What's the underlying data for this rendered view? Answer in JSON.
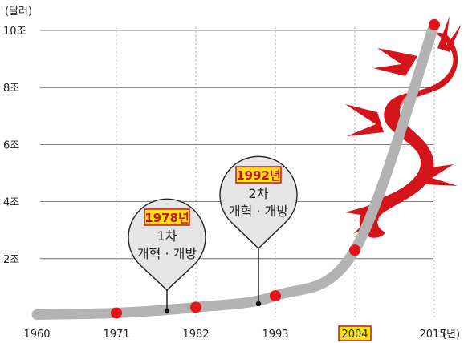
{
  "chart_data": {
    "type": "line",
    "title": "",
    "y_unit": "(달러)",
    "x_unit": "(년)",
    "x_ticks": [
      "1960",
      "1971",
      "1982",
      "1993",
      "2004",
      "2015"
    ],
    "highlighted_x_tick": "2004",
    "y_ticks": [
      "2조",
      "4조",
      "6조",
      "8조",
      "10조"
    ],
    "ylim": [
      0,
      10
    ],
    "xlim": [
      1960,
      2015
    ],
    "grid": true,
    "points": [
      {
        "x": 1971,
        "y": 0.1
      },
      {
        "x": 1982,
        "y": 0.3
      },
      {
        "x": 1993,
        "y": 0.7
      },
      {
        "x": 2004,
        "y": 2.3
      },
      {
        "x": 2015,
        "y": 10.2
      }
    ],
    "annotations": [
      {
        "x": 1978,
        "year_label": "1978년",
        "lines": [
          "1차",
          "개혁 · 개방"
        ]
      },
      {
        "x": 1992,
        "year_label": "1992년",
        "lines": [
          "2차",
          "개혁 · 개방"
        ]
      }
    ],
    "colors": {
      "curve": "#b3b3b3",
      "point": "#e3141b",
      "highlight_fill": "#ffe600",
      "highlight_stroke": "#c8102e",
      "dragon": "#d4141b",
      "bubble_fill": "#e6e6e6"
    }
  }
}
